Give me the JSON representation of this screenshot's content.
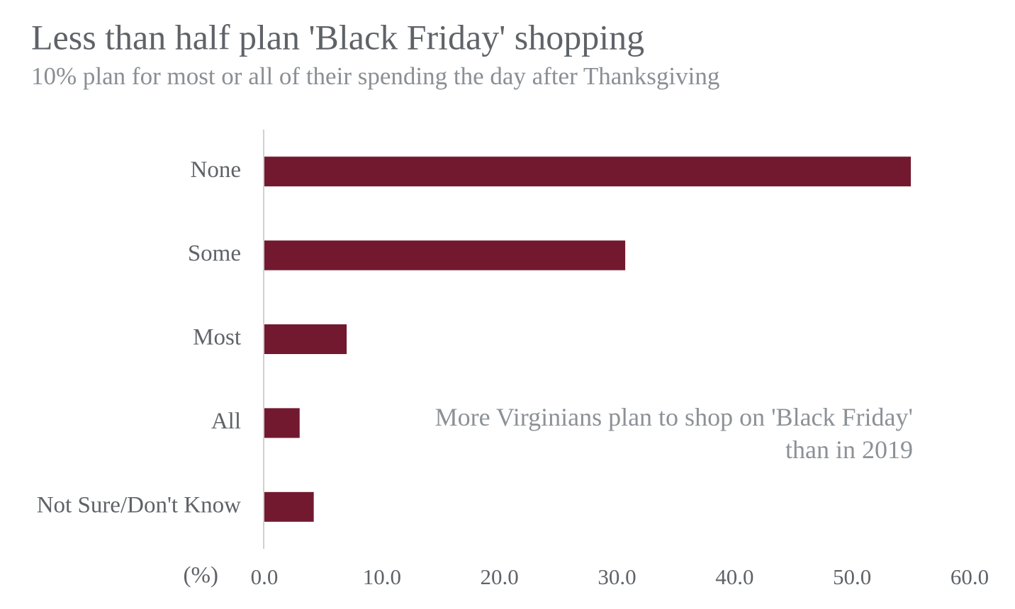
{
  "chart_data": {
    "type": "bar",
    "orientation": "horizontal",
    "title": "Less than half plan 'Black Friday' shopping",
    "subtitle": "10% plan for most or all of their spending the day after Thanksgiving",
    "annotation": "More Virginians plan to shop on 'Black Friday' than in 2019",
    "x_label": "(%)",
    "categories": [
      "None",
      "Some",
      "Most",
      "All",
      "Not Sure/Don't Know"
    ],
    "values": [
      55,
      30.7,
      7,
      3,
      4.2
    ],
    "color": "#721930",
    "xlim": [
      0,
      60
    ],
    "xticks": [
      {
        "value": 0,
        "label": "0.0"
      },
      {
        "value": 10,
        "label": "10.0"
      },
      {
        "value": 20,
        "label": "20.0"
      },
      {
        "value": 30,
        "label": "30.0"
      },
      {
        "value": 40,
        "label": "40.0"
      },
      {
        "value": 50,
        "label": "50.0"
      },
      {
        "value": 60,
        "label": "60.0"
      }
    ],
    "grid": false
  }
}
